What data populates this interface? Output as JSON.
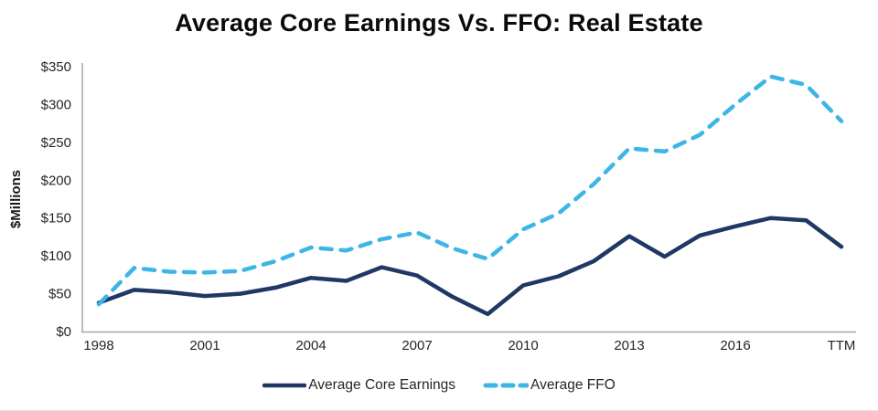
{
  "chart_data": {
    "type": "line",
    "title": "Average Core Earnings Vs. FFO: Real Estate",
    "xlabel": "",
    "ylabel": "$Millions",
    "ylim": [
      0,
      350
    ],
    "ytick_step": 50,
    "ytick_labels": [
      "$0",
      "$50",
      "$100",
      "$150",
      "$200",
      "$250",
      "$300",
      "$350"
    ],
    "grid": false,
    "legend_position": "bottom-center",
    "axis_color": "#A6A6A6",
    "text_color": "#262626",
    "categories": [
      "1998",
      "1999",
      "2000",
      "2001",
      "2002",
      "2003",
      "2004",
      "2005",
      "2006",
      "2007",
      "2008",
      "2009",
      "2010",
      "2011",
      "2012",
      "2013",
      "2014",
      "2015",
      "2016",
      "2017",
      "2018",
      "TTM"
    ],
    "xticks": [
      {
        "label": "1998",
        "index": 0
      },
      {
        "label": "2001",
        "index": 3
      },
      {
        "label": "2004",
        "index": 6
      },
      {
        "label": "2007",
        "index": 9
      },
      {
        "label": "2010",
        "index": 12
      },
      {
        "label": "2013",
        "index": 15
      },
      {
        "label": "2016",
        "index": 18
      },
      {
        "label": "TTM",
        "index": 21
      }
    ],
    "series": [
      {
        "id": "core-earnings",
        "name": "Average Core Earnings",
        "color": "#1F3864",
        "style": "solid",
        "dash": null,
        "values": [
          38,
          55,
          52,
          47,
          50,
          58,
          71,
          67,
          85,
          74,
          46,
          23,
          61,
          73,
          93,
          126,
          99,
          127,
          139,
          150,
          147,
          112
        ]
      },
      {
        "id": "ffo",
        "name": "Average FFO",
        "color": "#3DB5E6",
        "style": "dashed",
        "dash": "12 10",
        "values": [
          36,
          84,
          79,
          78,
          80,
          93,
          111,
          107,
          122,
          131,
          110,
          96,
          135,
          156,
          195,
          242,
          238,
          260,
          300,
          337,
          326,
          278
        ]
      }
    ]
  }
}
